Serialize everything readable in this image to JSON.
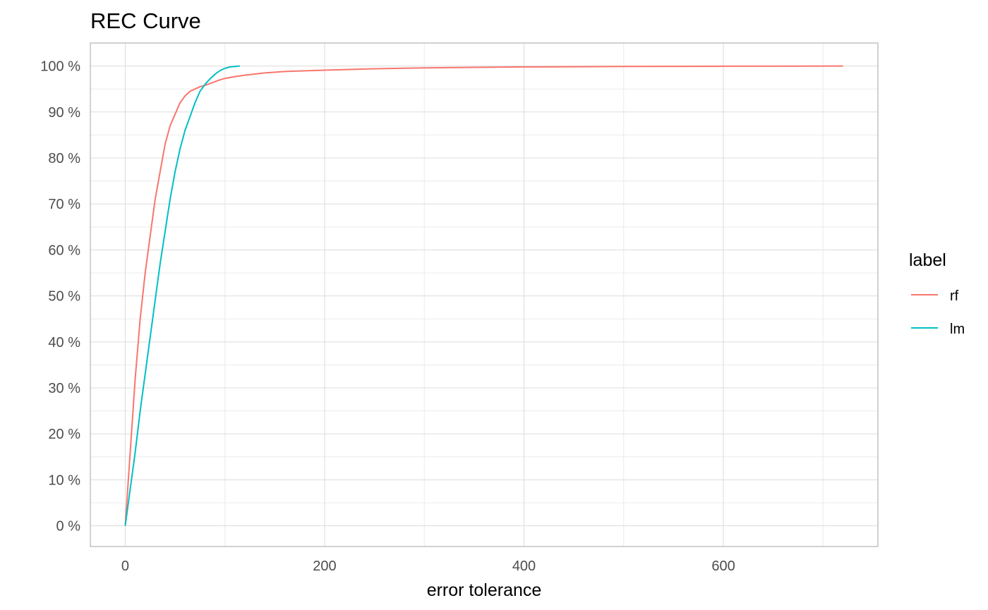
{
  "chart_data": {
    "type": "line",
    "title": "REC Curve",
    "xlabel": "error tolerance",
    "ylabel": "",
    "xlim": [
      -35,
      755
    ],
    "ylim": [
      -0.045,
      1.05
    ],
    "x_ticks": [
      0,
      200,
      400,
      600
    ],
    "y_ticks": [
      0,
      0.1,
      0.2,
      0.3,
      0.4,
      0.5,
      0.6,
      0.7,
      0.8,
      0.9,
      1.0
    ],
    "y_tick_labels": [
      "0 %",
      "10 %",
      "20 %",
      "30 %",
      "40 %",
      "50 %",
      "60 %",
      "70 %",
      "80 %",
      "90 %",
      "100 %"
    ],
    "grid": true,
    "legend": {
      "title": "label",
      "position": "right"
    },
    "series": [
      {
        "name": "rf",
        "color": "#F8766D",
        "x": [
          0,
          5,
          10,
          15,
          20,
          25,
          30,
          35,
          40,
          45,
          50,
          55,
          60,
          65,
          70,
          75,
          80,
          85,
          90,
          95,
          100,
          110,
          120,
          140,
          160,
          200,
          250,
          300,
          400,
          450,
          500,
          600,
          720
        ],
        "y": [
          0,
          0.16,
          0.32,
          0.45,
          0.55,
          0.63,
          0.71,
          0.77,
          0.83,
          0.87,
          0.895,
          0.92,
          0.935,
          0.945,
          0.95,
          0.955,
          0.958,
          0.962,
          0.966,
          0.97,
          0.973,
          0.977,
          0.98,
          0.985,
          0.988,
          0.991,
          0.994,
          0.996,
          0.998,
          0.9985,
          0.999,
          0.9995,
          1.0
        ]
      },
      {
        "name": "lm",
        "color": "#00BFC4",
        "x": [
          0,
          5,
          10,
          15,
          20,
          25,
          30,
          35,
          40,
          45,
          50,
          55,
          60,
          65,
          70,
          75,
          80,
          85,
          90,
          95,
          100,
          105,
          110,
          115
        ],
        "y": [
          0,
          0.08,
          0.16,
          0.25,
          0.33,
          0.41,
          0.49,
          0.57,
          0.64,
          0.71,
          0.77,
          0.82,
          0.86,
          0.89,
          0.92,
          0.945,
          0.96,
          0.972,
          0.982,
          0.99,
          0.995,
          0.998,
          0.999,
          1.0
        ]
      }
    ]
  }
}
